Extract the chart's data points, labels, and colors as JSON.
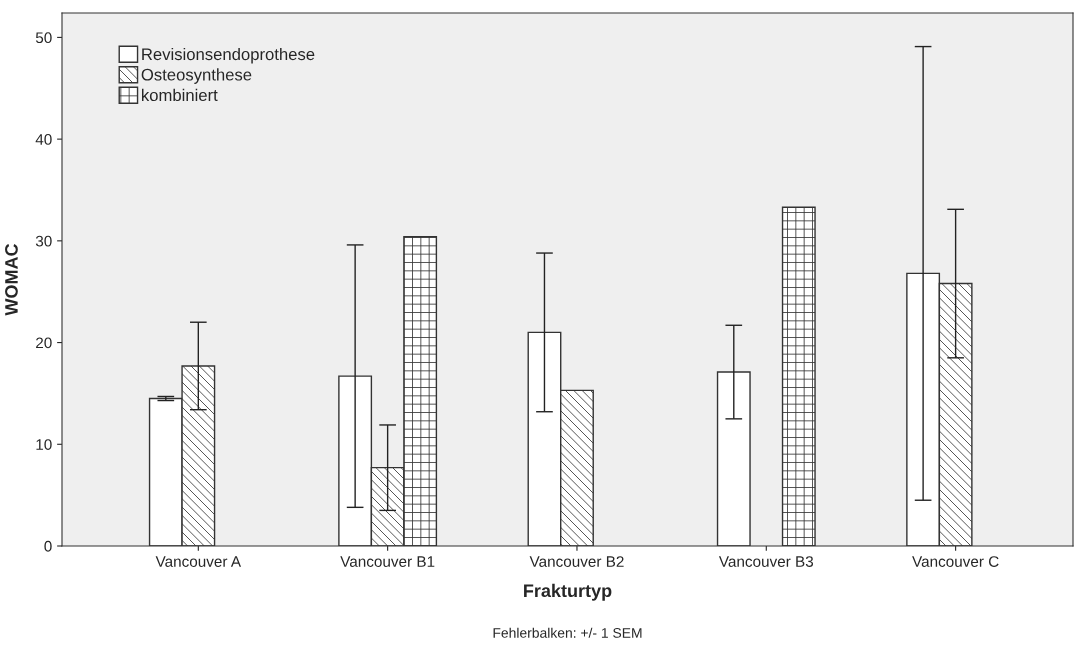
{
  "chart_data": {
    "type": "bar",
    "xlabel": "Frakturtyp",
    "ylabel": "WOMAC",
    "categories": [
      "Vancouver A",
      "Vancouver B1",
      "Vancouver B2",
      "Vancouver B3",
      "Vancouver C"
    ],
    "series": [
      {
        "name": "Revisionsendoprothese",
        "color": "#ffffff",
        "values": [
          14.5,
          16.7,
          21.0,
          17.1,
          26.8
        ],
        "errors": [
          0.2,
          12.9,
          7.8,
          4.6,
          22.3
        ]
      },
      {
        "name": "Osteosynthese",
        "color": "#333333",
        "values": [
          17.7,
          7.7,
          15.3,
          null,
          25.8
        ],
        "errors": [
          4.3,
          4.2,
          null,
          null,
          7.3
        ]
      },
      {
        "name": "kombiniert",
        "color": "#333333",
        "values": [
          null,
          30.4,
          null,
          33.3,
          null
        ],
        "errors": [
          null,
          null,
          null,
          null,
          null
        ]
      }
    ],
    "ylim": [
      0,
      52.4
    ],
    "yticks": [
      0,
      10,
      20,
      30,
      40,
      50
    ],
    "grid": false,
    "legend": "top left",
    "annotations": [
      "Fehlerbalken: +/- 1 SEM"
    ]
  }
}
